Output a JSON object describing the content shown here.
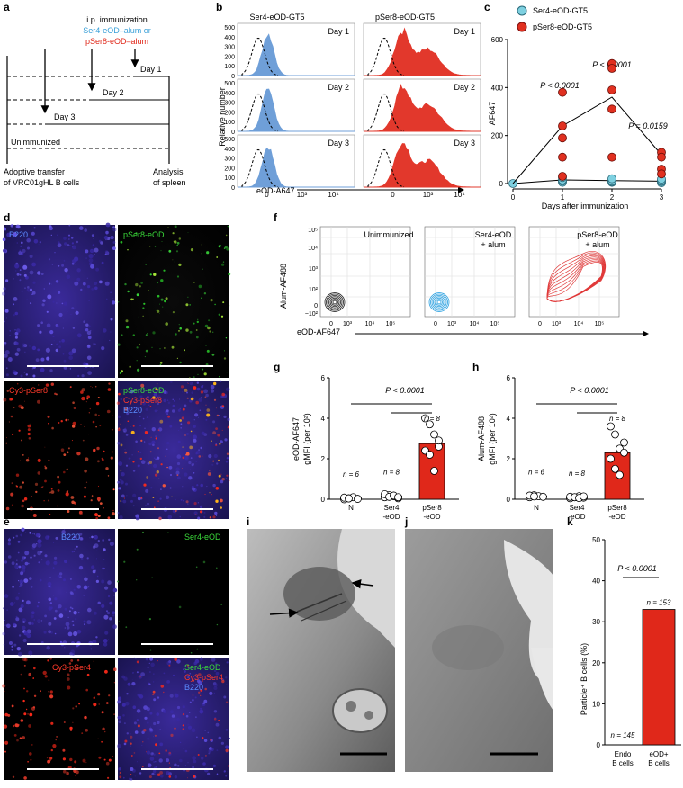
{
  "panel_letters": [
    "a",
    "b",
    "c",
    "d",
    "e",
    "f",
    "g",
    "h",
    "i",
    "j",
    "k"
  ],
  "panel_a": {
    "title": "i.p. immunization",
    "line_blue": "Ser4-eOD–alum or",
    "line_red": "pSer8-eOD–alum",
    "days": [
      "Day 1",
      "Day 2",
      "Day 3"
    ],
    "unimmunized": "Unimmunized",
    "left_note": [
      "Adoptive transfer",
      "of VRC01gHL B cells"
    ],
    "right_note": [
      "Analysis",
      "of spleen"
    ],
    "colors": {
      "blue": "#3aa0d8",
      "red": "#e0281a"
    }
  },
  "panel_b": {
    "col_titles": [
      "Ser4-eOD-GT5",
      "pSer8-eOD-GT5"
    ],
    "rows": [
      "Day 1",
      "Day 2",
      "Day 3"
    ],
    "ylabel": "Relative number",
    "xlabel": "eOD-A647",
    "yticks": [
      "0",
      "100",
      "200",
      "300",
      "400",
      "500"
    ],
    "xticks": [
      "0",
      "10³",
      "10⁴"
    ],
    "colors": {
      "ser4": "#6f9fd8",
      "pser8": "#e2382c"
    }
  },
  "chart_data": {
    "type": "scatter",
    "panel": "c",
    "ylabel": "AF647",
    "xlabel": "Days after immunization",
    "xlim": [
      0,
      3
    ],
    "ylim": [
      0,
      600
    ],
    "yticks": [
      0,
      200,
      400,
      600
    ],
    "xticks": [
      0,
      1,
      2,
      3
    ],
    "legend_position": "top",
    "series": [
      {
        "name": "Ser4-eOD-GT5",
        "color": "#7ed0e0",
        "points": [
          [
            0,
            0
          ],
          [
            1,
            5
          ],
          [
            1,
            10
          ],
          [
            1,
            15
          ],
          [
            1,
            25
          ],
          [
            2,
            5
          ],
          [
            2,
            8
          ],
          [
            2,
            12
          ],
          [
            2,
            20
          ],
          [
            3,
            3
          ],
          [
            3,
            8
          ],
          [
            3,
            12
          ],
          [
            3,
            18
          ]
        ],
        "mean": [
          [
            0,
            0
          ],
          [
            1,
            15
          ],
          [
            2,
            12
          ],
          [
            3,
            10
          ]
        ]
      },
      {
        "name": "pSer8-eOD-GT5",
        "color": "#e03020",
        "points": [
          [
            1,
            380
          ],
          [
            1,
            240
          ],
          [
            1,
            190
          ],
          [
            1,
            110
          ],
          [
            1,
            30
          ],
          [
            2,
            500
          ],
          [
            2,
            480
          ],
          [
            2,
            390
          ],
          [
            2,
            310
          ],
          [
            2,
            110
          ],
          [
            3,
            130
          ],
          [
            3,
            110
          ],
          [
            3,
            60
          ],
          [
            3,
            40
          ]
        ],
        "mean": [
          [
            0,
            0
          ],
          [
            1,
            240
          ],
          [
            2,
            360
          ],
          [
            3,
            120
          ]
        ]
      }
    ],
    "annotations": [
      "P < 0.0001",
      "P < 0.0001",
      "P = 0.0159"
    ]
  },
  "panel_d": {
    "labels": [
      "B220",
      "pSer8-eOD",
      "Cy3-pSer8",
      "pSer8-eOD",
      "Cy3-pSer8",
      "B220"
    ]
  },
  "panel_e": {
    "labels": [
      "B220",
      "Ser4-eOD",
      "Cy3-pSer4",
      "Ser4-eOD",
      "Cy3-pSer4",
      "B220"
    ]
  },
  "panel_f": {
    "ylabel": "Alum-AF488",
    "xlabel": "eOD-AF647",
    "titles": [
      [
        "Unimmunized"
      ],
      [
        "Ser4-eOD",
        "+ alum"
      ],
      [
        "pSer8-eOD",
        "+ alum"
      ]
    ],
    "yticks": [
      "10⁵",
      "10⁴",
      "10³",
      "10²",
      "0",
      "−10²"
    ],
    "xticks": [
      "0",
      "10³",
      "10⁴",
      "10⁵"
    ],
    "colors": [
      "#222222",
      "#2aa0e0",
      "#e03a3a"
    ]
  },
  "panel_g": {
    "ylabel": [
      "eOD-AF647",
      "gMFI (per 10²)"
    ],
    "pvalue": "P < 0.0001",
    "yticks": [
      "0",
      "2",
      "4",
      "6"
    ],
    "groups": [
      {
        "label": [
          "N"
        ],
        "n": "n = 6",
        "mean": 0.05,
        "points": [
          0.0,
          0.05,
          0.1,
          0.02,
          0.08,
          0.04
        ]
      },
      {
        "label": [
          "Ser4",
          "-eOD"
        ],
        "n": "n = 8",
        "mean": 0.15,
        "points": [
          0.1,
          0.2,
          0.15,
          0.05,
          0.25,
          0.12,
          0.18,
          0.1
        ]
      },
      {
        "label": [
          "pSer8",
          "-eOD"
        ],
        "n": "n = 8",
        "mean": 2.75,
        "points": [
          4.0,
          3.7,
          3.2,
          2.6,
          2.4,
          2.2,
          1.4,
          2.9
        ]
      }
    ]
  },
  "panel_h": {
    "ylabel": [
      "Alum-AF488",
      "gMFI (per 10²)"
    ],
    "pvalue": "P < 0.0001",
    "yticks": [
      "0",
      "2",
      "4",
      "6"
    ],
    "groups": [
      {
        "label": [
          "N"
        ],
        "n": "n = 6",
        "mean": 0.15,
        "points": [
          0.1,
          0.2,
          0.15,
          0.12,
          0.18,
          0.14
        ]
      },
      {
        "label": [
          "Ser4",
          "-eOD"
        ],
        "n": "n = 8",
        "mean": 0.1,
        "points": [
          0.05,
          0.1,
          0.15,
          0.08,
          0.12,
          0.1,
          0.06,
          0.14
        ]
      },
      {
        "label": [
          "pSer8",
          "-eOD"
        ],
        "n": "n = 8",
        "mean": 2.3,
        "points": [
          3.6,
          3.2,
          2.5,
          2.3,
          2.0,
          1.5,
          1.2,
          2.8
        ]
      }
    ]
  },
  "panel_k": {
    "ylabel": "Particle⁺ B cells (%)",
    "pvalue": "P < 0.0001",
    "yticks": [
      "0",
      "10",
      "20",
      "30",
      "40",
      "50"
    ],
    "bars": [
      {
        "label": [
          "Endo",
          "B cells"
        ],
        "n": "n = 145",
        "value": 0
      },
      {
        "label": [
          "eOD+",
          "B cells"
        ],
        "n": "n = 153",
        "value": 33
      }
    ]
  }
}
